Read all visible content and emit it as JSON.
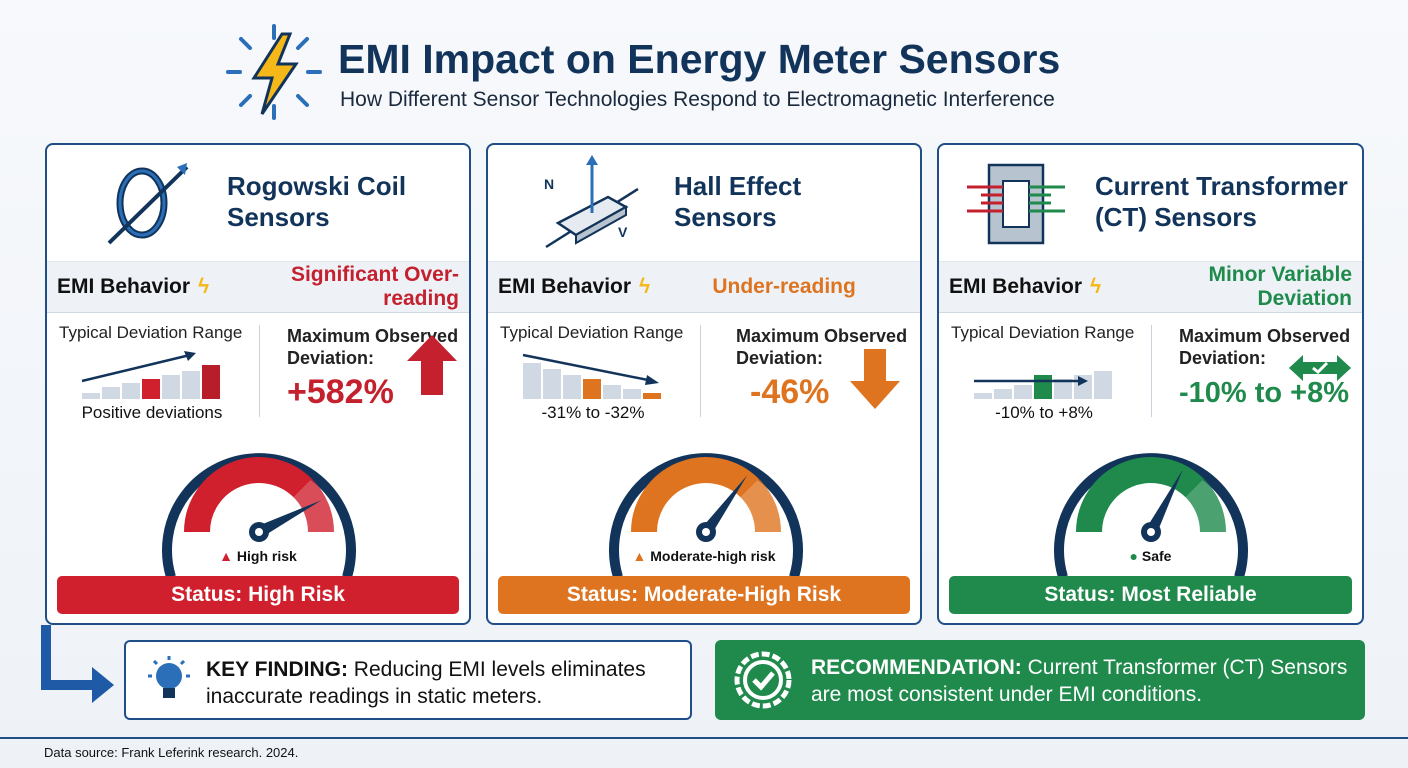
{
  "header": {
    "title": "EMI Impact on Energy Meter Sensors",
    "subtitle": "How Different Sensor Technologies Respond to Electromagnetic Interference"
  },
  "common": {
    "emi_label": "EMI Behavior",
    "typical_label": "Typical Deviation Range",
    "max_label_1": "Maximum Observed",
    "max_label_2": "Deviation:"
  },
  "cards": [
    {
      "title_1": "Rogowski Coil",
      "title_2": "Sensors",
      "behavior": "Significant Over-reading",
      "typical_range": "Positive deviations",
      "max_deviation": "+582%",
      "gauge_label": "High risk",
      "status": "Status: High Risk",
      "color": "#d0202e",
      "risk_level": 0.85
    },
    {
      "title_1": "Hall Effect",
      "title_2": "Sensors",
      "behavior": "Under-reading",
      "typical_range": "-31% to -32%",
      "max_deviation": "-46%",
      "gauge_label": "Moderate-high risk",
      "status": "Status: Moderate-High Risk",
      "color": "#de7420",
      "risk_level": 0.7,
      "icon_labels": {
        "n": "N",
        "v": "V"
      }
    },
    {
      "title_1": "Current Transformer",
      "title_2": "(CT) Sensors",
      "behavior": "Minor Variable Deviation",
      "typical_range": "-10% to +8%",
      "max_deviation": "-10% to +8%",
      "gauge_label": "Safe",
      "status": "Status: Most Reliable",
      "color": "#1f8a4c",
      "risk_level": 0.65
    }
  ],
  "finding": {
    "label": "KEY FINDING:",
    "text": " Reducing EMI levels eliminates inaccurate readings in static meters."
  },
  "recommendation": {
    "label": "RECOMMENDATION:",
    "text": " Current Transformer (CT) Sensors are most consistent under EMI conditions."
  },
  "footer": "Data source: Frank Leferink research. 2024."
}
